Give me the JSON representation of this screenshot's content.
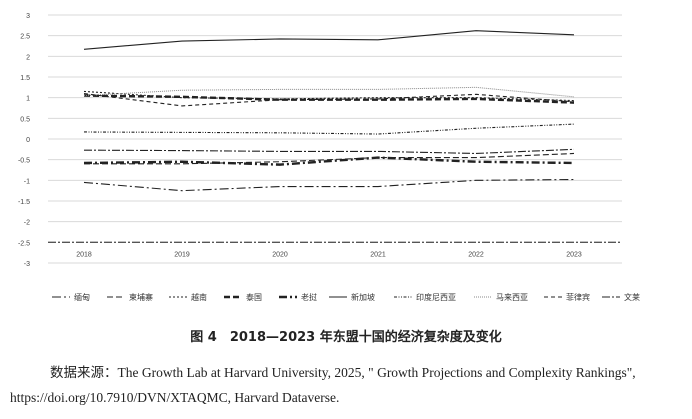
{
  "chart_data": {
    "type": "line",
    "title": "",
    "xlabel": "",
    "ylabel": "",
    "x": [
      "2018",
      "2019",
      "2020",
      "2021",
      "2022",
      "2023"
    ],
    "ylim": [
      -3,
      3
    ],
    "yticks": [
      "3",
      "2.5",
      "2",
      "1.5",
      "1",
      "0.5",
      "0",
      "-0.5",
      "-1",
      "-1.5",
      "-2",
      "-2.5",
      "-3"
    ],
    "grid": true,
    "legend_position": "bottom",
    "series": [
      {
        "name": "缅甸",
        "values": [
          -1.05,
          -1.25,
          -1.15,
          -1.15,
          -1.0,
          -0.98
        ],
        "dash": "9,3,2,3",
        "width": 1.1
      },
      {
        "name": "柬埔寨",
        "values": [
          -0.6,
          -0.6,
          -0.55,
          -0.45,
          -0.45,
          -0.35
        ],
        "dash": "6,3",
        "width": 1.1
      },
      {
        "name": "越南",
        "values": [
          1.15,
          1.0,
          0.97,
          1.0,
          1.0,
          0.93
        ],
        "dash": "2,2",
        "width": 1.1
      },
      {
        "name": "泰国",
        "values": [
          1.05,
          1.02,
          0.95,
          0.95,
          0.97,
          0.88
        ],
        "dash": "6,3",
        "width": 2.4
      },
      {
        "name": "老挝",
        "values": [
          -0.58,
          -0.55,
          -0.62,
          -0.45,
          -0.55,
          -0.58
        ],
        "dash": "8,3,2,3",
        "width": 2.4
      },
      {
        "name": "新加坡",
        "values": [
          2.17,
          2.37,
          2.42,
          2.4,
          2.62,
          2.52
        ],
        "dash": "",
        "width": 1.1
      },
      {
        "name": "印度尼西亚",
        "values": [
          0.17,
          0.16,
          0.15,
          0.12,
          0.26,
          0.36
        ],
        "dash": "3,1.5,1,1.5,1,1.5",
        "width": 1.1
      },
      {
        "name": "马来西亚",
        "values": [
          1.05,
          1.18,
          1.2,
          1.2,
          1.25,
          1.02
        ],
        "dash": "1,1",
        "width": 1
      },
      {
        "name": "菲律宾",
        "values": [
          1.1,
          0.8,
          0.95,
          0.97,
          1.08,
          0.9
        ],
        "dash": "4,3",
        "width": 1.1
      },
      {
        "name": "文莱",
        "values": [
          -0.27,
          -0.28,
          -0.3,
          -0.3,
          -0.35,
          -0.25
        ],
        "dash": "8,2,2,2",
        "width": 1.1
      }
    ]
  },
  "caption": "图 4　2018—2023 年东盟十国的经济复杂度及变化",
  "source": "数据来源：The Growth Lab at Harvard University, 2025, \" Growth Projections and Complexity Rankings\", https://doi.org/10.7910/DVN/XTAQMC, Harvard Dataverse."
}
